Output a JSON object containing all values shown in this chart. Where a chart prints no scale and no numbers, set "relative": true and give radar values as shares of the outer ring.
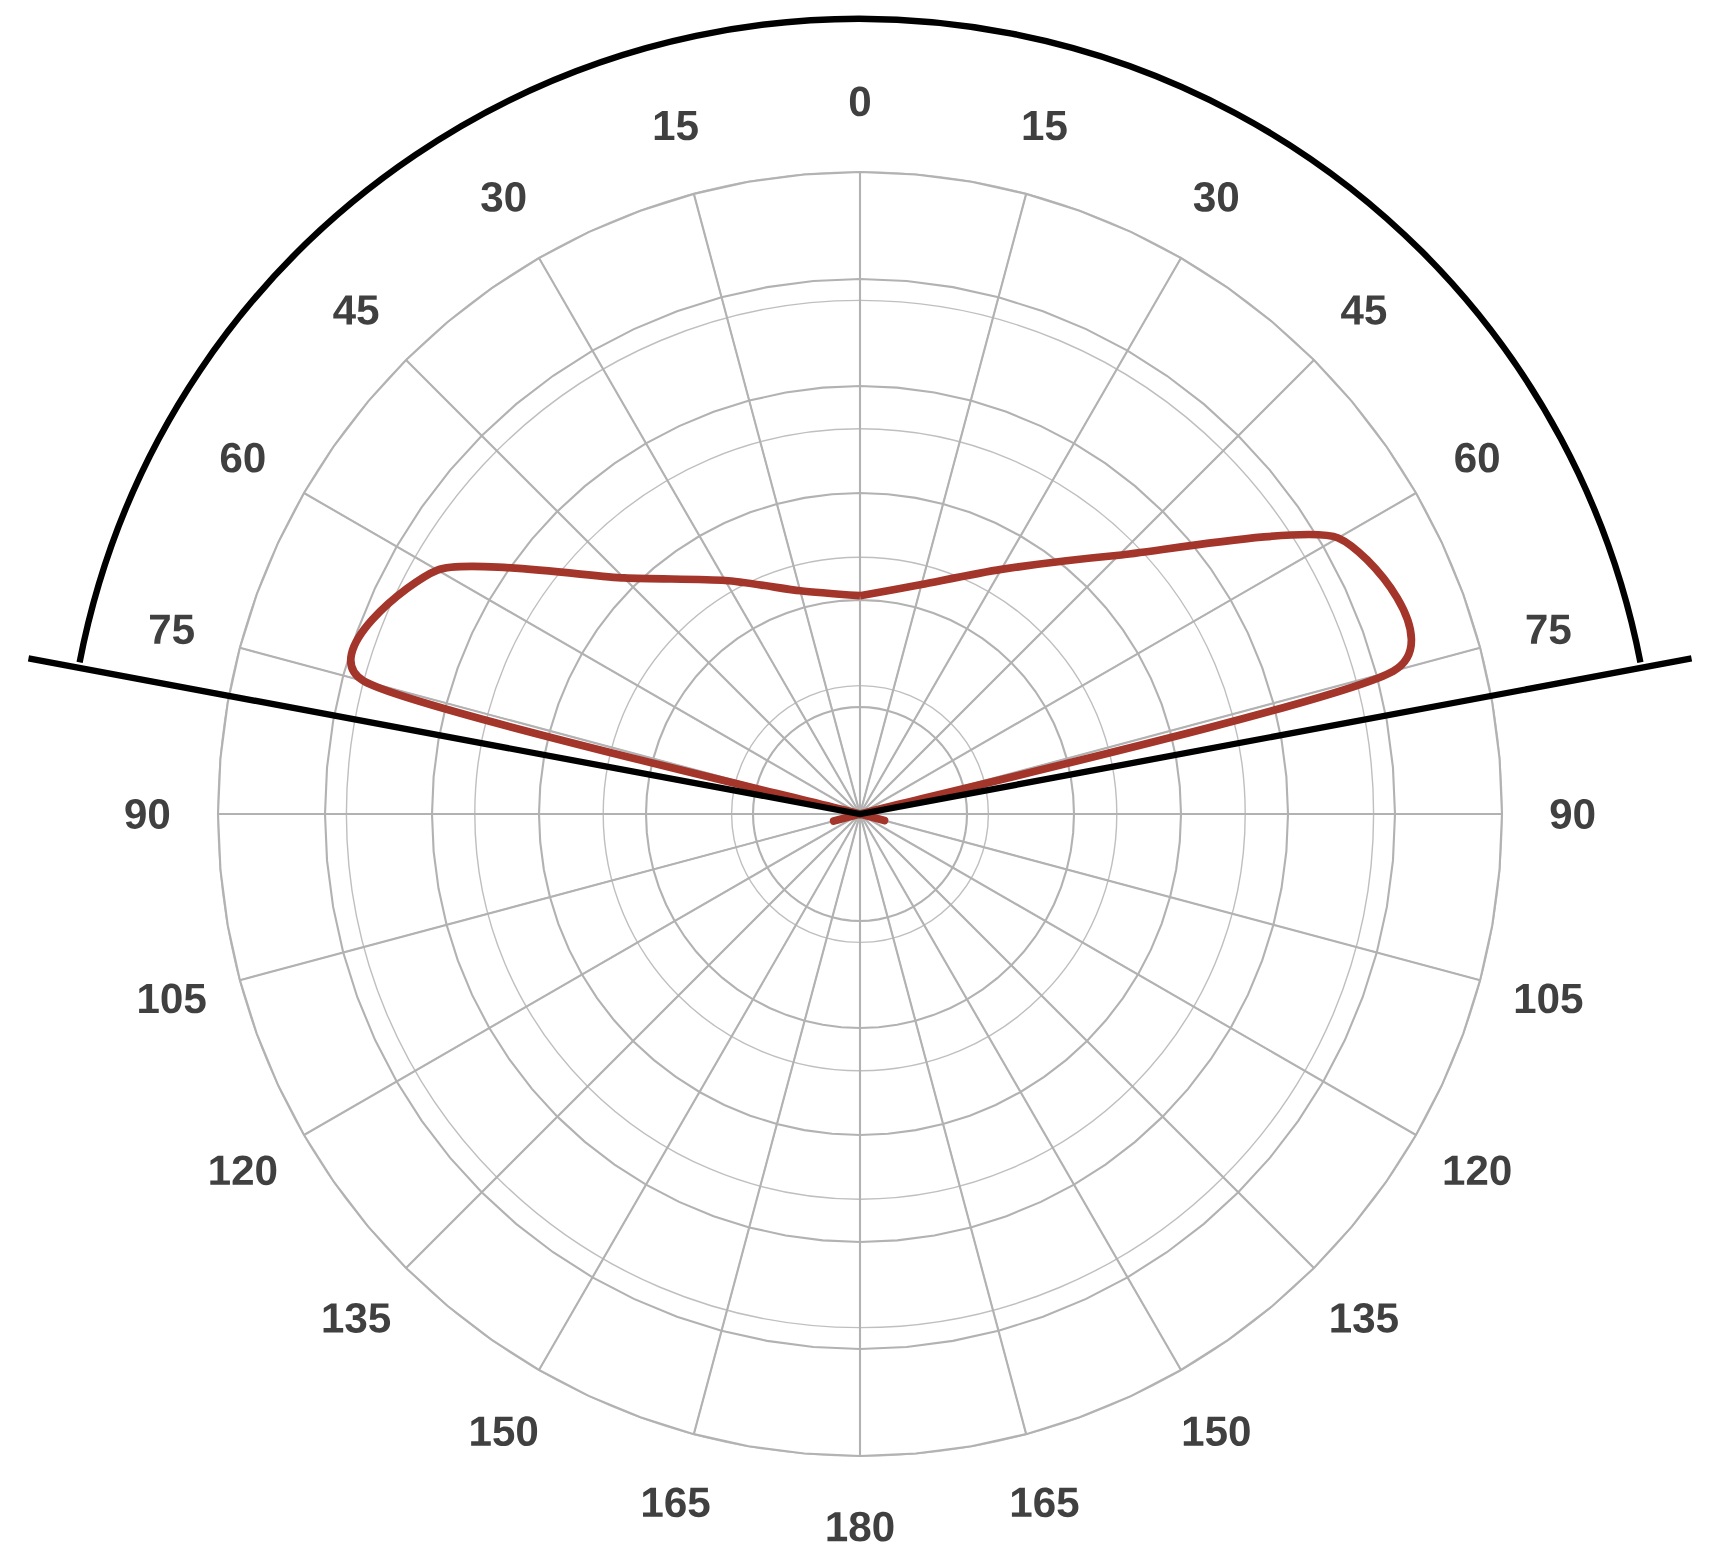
{
  "chart_data": {
    "type": "radar",
    "relative": true,
    "grid": true,
    "categories": [
      "0",
      "15",
      "30",
      "45",
      "60",
      "75",
      "90",
      "105",
      "120",
      "135",
      "150",
      "165",
      "180",
      "165",
      "150",
      "135",
      "120",
      "105",
      "90",
      "75",
      "60",
      "45",
      "30",
      "15"
    ],
    "series": [
      {
        "color": "#a3352b",
        "values": [
          0.34,
          0.37,
          0.44,
          0.57,
          0.86,
          0.86,
          0,
          0,
          0,
          0,
          0,
          0,
          0,
          0,
          0,
          0,
          0,
          0,
          0,
          0.8,
          0.76,
          0.52,
          0.42,
          0.36
        ]
      }
    ]
  }
}
